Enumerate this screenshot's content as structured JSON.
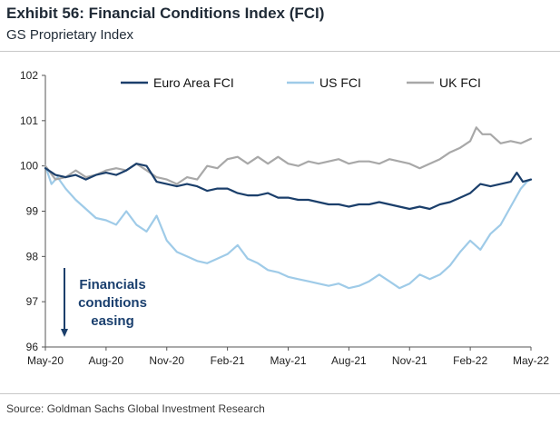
{
  "title": "Exhibit 56: Financial Conditions Index (FCI)",
  "subtitle": "GS Proprietary Index",
  "source": "Source: Goldman Sachs Global Investment Research",
  "colors": {
    "euro": "#1b3f6b",
    "us": "#9fcbe8",
    "uk": "#a8a8a8",
    "annotation": "#1a3f6e"
  },
  "chart_data": {
    "type": "line",
    "title": "Exhibit 56: Financial Conditions Index (FCI)",
    "subtitle": "GS Proprietary Index",
    "xlabel": "",
    "ylabel": "",
    "ylim": [
      96,
      102
    ],
    "yticks": [
      "96",
      "97",
      "98",
      "99",
      "100",
      "101",
      "102"
    ],
    "xlim_months": [
      0,
      24
    ],
    "xtick_labels": [
      "May-20",
      "Aug-20",
      "Nov-20",
      "Feb-21",
      "May-21",
      "Aug-21",
      "Nov-21",
      "Feb-22",
      "May-22"
    ],
    "xtick_months": [
      0,
      3,
      6,
      9,
      12,
      15,
      18,
      21,
      24
    ],
    "legend_position": "top",
    "grid": false,
    "annotation": {
      "lines": [
        "Financials",
        "conditions",
        "easing"
      ],
      "arrow": "down"
    },
    "series": [
      {
        "name": "Euro Area FCI",
        "color": "#1b3f6b",
        "points": [
          [
            0,
            99.95
          ],
          [
            0.5,
            99.8
          ],
          [
            1,
            99.75
          ],
          [
            1.5,
            99.8
          ],
          [
            2,
            99.7
          ],
          [
            2.5,
            99.8
          ],
          [
            3,
            99.85
          ],
          [
            3.5,
            99.8
          ],
          [
            4,
            99.9
          ],
          [
            4.5,
            100.05
          ],
          [
            5,
            100.0
          ],
          [
            5.5,
            99.65
          ],
          [
            6,
            99.6
          ],
          [
            6.5,
            99.55
          ],
          [
            7,
            99.6
          ],
          [
            7.5,
            99.55
          ],
          [
            8,
            99.45
          ],
          [
            8.5,
            99.5
          ],
          [
            9,
            99.5
          ],
          [
            9.5,
            99.4
          ],
          [
            10,
            99.35
          ],
          [
            10.5,
            99.35
          ],
          [
            11,
            99.4
          ],
          [
            11.5,
            99.3
          ],
          [
            12,
            99.3
          ],
          [
            12.5,
            99.25
          ],
          [
            13,
            99.25
          ],
          [
            13.5,
            99.2
          ],
          [
            14,
            99.15
          ],
          [
            14.5,
            99.15
          ],
          [
            15,
            99.1
          ],
          [
            15.5,
            99.15
          ],
          [
            16,
            99.15
          ],
          [
            16.5,
            99.2
          ],
          [
            17,
            99.15
          ],
          [
            17.5,
            99.1
          ],
          [
            18,
            99.05
          ],
          [
            18.5,
            99.1
          ],
          [
            19,
            99.05
          ],
          [
            19.5,
            99.15
          ],
          [
            20,
            99.2
          ],
          [
            20.5,
            99.3
          ],
          [
            21,
            99.4
          ],
          [
            21.5,
            99.6
          ],
          [
            22,
            99.55
          ],
          [
            22.5,
            99.6
          ],
          [
            23,
            99.65
          ],
          [
            23.3,
            99.85
          ],
          [
            23.6,
            99.65
          ],
          [
            24,
            99.7
          ]
        ]
      },
      {
        "name": "US FCI",
        "color": "#9fcbe8",
        "points": [
          [
            0,
            100.0
          ],
          [
            0.3,
            99.6
          ],
          [
            0.6,
            99.75
          ],
          [
            1,
            99.5
          ],
          [
            1.5,
            99.25
          ],
          [
            2,
            99.05
          ],
          [
            2.5,
            98.85
          ],
          [
            3,
            98.8
          ],
          [
            3.5,
            98.7
          ],
          [
            4,
            99.0
          ],
          [
            4.5,
            98.7
          ],
          [
            5,
            98.55
          ],
          [
            5.5,
            98.9
          ],
          [
            6,
            98.35
          ],
          [
            6.5,
            98.1
          ],
          [
            7,
            98.0
          ],
          [
            7.5,
            97.9
          ],
          [
            8,
            97.85
          ],
          [
            8.5,
            97.95
          ],
          [
            9,
            98.05
          ],
          [
            9.5,
            98.25
          ],
          [
            10,
            97.95
          ],
          [
            10.5,
            97.85
          ],
          [
            11,
            97.7
          ],
          [
            11.5,
            97.65
          ],
          [
            12,
            97.55
          ],
          [
            12.5,
            97.5
          ],
          [
            13,
            97.45
          ],
          [
            13.5,
            97.4
          ],
          [
            14,
            97.35
          ],
          [
            14.5,
            97.4
          ],
          [
            15,
            97.3
          ],
          [
            15.5,
            97.35
          ],
          [
            16,
            97.45
          ],
          [
            16.5,
            97.6
          ],
          [
            17,
            97.45
          ],
          [
            17.5,
            97.3
          ],
          [
            18,
            97.4
          ],
          [
            18.5,
            97.6
          ],
          [
            19,
            97.5
          ],
          [
            19.5,
            97.6
          ],
          [
            20,
            97.8
          ],
          [
            20.5,
            98.1
          ],
          [
            21,
            98.35
          ],
          [
            21.5,
            98.15
          ],
          [
            22,
            98.5
          ],
          [
            22.5,
            98.7
          ],
          [
            23,
            99.1
          ],
          [
            23.5,
            99.5
          ],
          [
            23.8,
            99.65
          ],
          [
            24,
            99.7
          ]
        ]
      },
      {
        "name": "UK FCI",
        "color": "#a8a8a8",
        "points": [
          [
            0,
            100.0
          ],
          [
            0.5,
            99.7
          ],
          [
            1,
            99.75
          ],
          [
            1.5,
            99.9
          ],
          [
            2,
            99.75
          ],
          [
            2.5,
            99.8
          ],
          [
            3,
            99.9
          ],
          [
            3.5,
            99.95
          ],
          [
            4,
            99.9
          ],
          [
            4.5,
            100.05
          ],
          [
            5,
            99.9
          ],
          [
            5.5,
            99.75
          ],
          [
            6,
            99.7
          ],
          [
            6.5,
            99.6
          ],
          [
            7,
            99.75
          ],
          [
            7.5,
            99.7
          ],
          [
            8,
            100.0
          ],
          [
            8.5,
            99.95
          ],
          [
            9,
            100.15
          ],
          [
            9.5,
            100.2
          ],
          [
            10,
            100.05
          ],
          [
            10.5,
            100.2
          ],
          [
            11,
            100.05
          ],
          [
            11.5,
            100.2
          ],
          [
            12,
            100.05
          ],
          [
            12.5,
            100.0
          ],
          [
            13,
            100.1
          ],
          [
            13.5,
            100.05
          ],
          [
            14,
            100.1
          ],
          [
            14.5,
            100.15
          ],
          [
            15,
            100.05
          ],
          [
            15.5,
            100.1
          ],
          [
            16,
            100.1
          ],
          [
            16.5,
            100.05
          ],
          [
            17,
            100.15
          ],
          [
            17.5,
            100.1
          ],
          [
            18,
            100.05
          ],
          [
            18.5,
            99.95
          ],
          [
            19,
            100.05
          ],
          [
            19.5,
            100.15
          ],
          [
            20,
            100.3
          ],
          [
            20.5,
            100.4
          ],
          [
            21,
            100.55
          ],
          [
            21.3,
            100.85
          ],
          [
            21.6,
            100.7
          ],
          [
            22,
            100.7
          ],
          [
            22.5,
            100.5
          ],
          [
            23,
            100.55
          ],
          [
            23.5,
            100.5
          ],
          [
            24,
            100.6
          ]
        ]
      }
    ]
  }
}
